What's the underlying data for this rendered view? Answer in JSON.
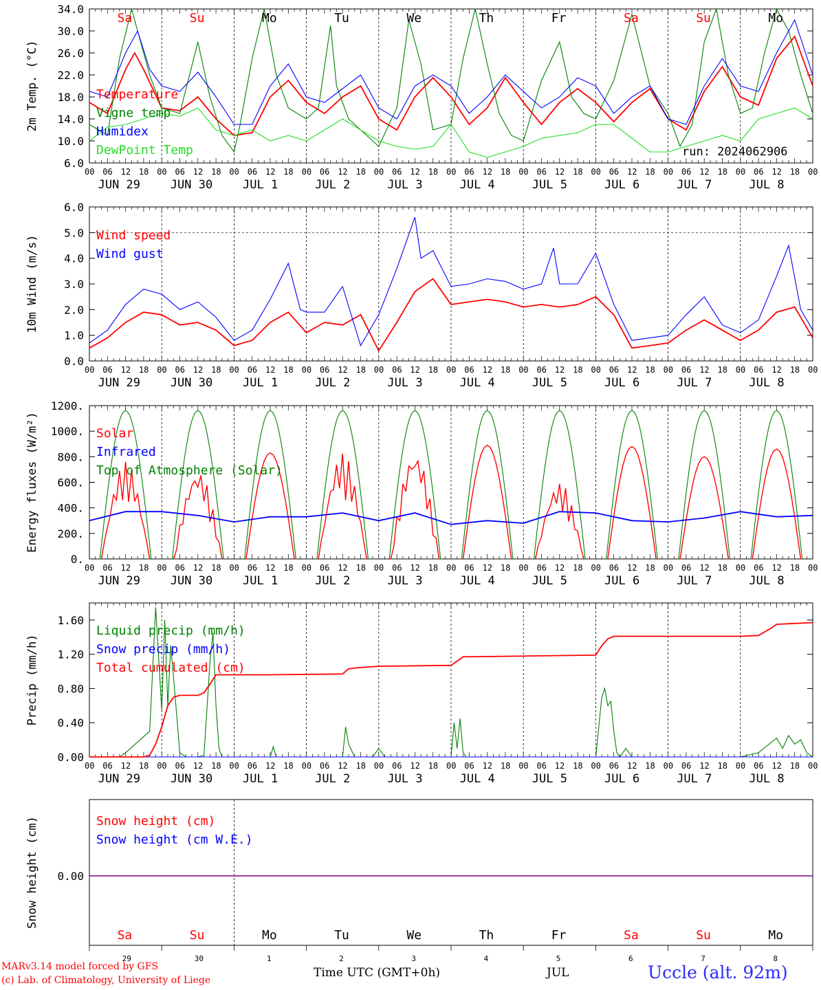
{
  "run_label": "run: 2024062906",
  "days": [
    "Sa",
    "Su",
    "Mo",
    "Tu",
    "We",
    "Th",
    "Fr",
    "Sa",
    "Su",
    "Mo"
  ],
  "date_labels": [
    "JUN 29",
    "JUN 30",
    "JUL  1",
    "JUL  2",
    "JUL  3",
    "JUL  4",
    "JUL  5",
    "JUL  6",
    "JUL  7",
    "JUL  8"
  ],
  "hour_labels": [
    "00",
    "06",
    "12",
    "18"
  ],
  "bottom_day_numbers": [
    "29",
    "30",
    "1",
    "2",
    "3",
    "4",
    "5",
    "6",
    "7",
    "8"
  ],
  "bottom_month_label": "JUL",
  "x_axis_title": "Time UTC (GMT+0h)",
  "footer_model": "MARv3.14 model forced by GFS",
  "footer_lab": "(c) Lab. of Climatology, University of Liege",
  "station_label": "Uccle (alt. 92m)",
  "colors": {
    "red": "#ff0000",
    "green": "#008000",
    "blue": "#0000ff",
    "lightgreen": "#22dd22",
    "purple": "#800080"
  },
  "chart_data": [
    {
      "type": "line",
      "ylabel": "2m Temp. (°C)",
      "ylim": [
        6,
        34
      ],
      "yticks": [
        "6.0",
        "10.0",
        "14.0",
        "18.0",
        "22.0",
        "26.0",
        "30.0",
        "34.0"
      ],
      "series": [
        {
          "name": "Temperature",
          "color": "red",
          "x": [
            0,
            6,
            12,
            15,
            18,
            24,
            30,
            36,
            42,
            48,
            54,
            60,
            66,
            72,
            78,
            84,
            90,
            96,
            102,
            108,
            114,
            120,
            126,
            132,
            138,
            144,
            150,
            156,
            162,
            168,
            174,
            180,
            186,
            192,
            198,
            204,
            210,
            216,
            222,
            228,
            234,
            240
          ],
          "y": [
            17,
            15,
            23,
            26,
            23,
            16,
            15.5,
            18,
            14,
            11,
            11.5,
            18,
            21,
            17,
            15,
            18,
            20,
            14,
            12,
            18,
            21.5,
            18,
            13,
            16,
            21.5,
            17,
            13,
            17,
            19.5,
            17,
            13.5,
            17,
            19.5,
            14,
            12,
            19,
            23.5,
            18,
            16.5,
            25,
            29,
            20
          ]
        },
        {
          "name": "Vigne temp",
          "color": "green",
          "x": [
            0,
            6,
            10,
            14,
            16,
            20,
            24,
            30,
            36,
            40,
            44,
            48,
            50,
            54,
            58,
            62,
            66,
            72,
            76,
            80,
            82,
            86,
            90,
            96,
            102,
            106,
            110,
            114,
            120,
            124,
            128,
            132,
            136,
            140,
            144,
            150,
            156,
            160,
            164,
            168,
            174,
            180,
            186,
            192,
            196,
            200,
            204,
            208,
            212,
            216,
            220,
            224,
            228,
            232,
            236,
            240
          ],
          "y": [
            13,
            11,
            25,
            34,
            30,
            22,
            16,
            15,
            28,
            18,
            11,
            8,
            13,
            25,
            34,
            22,
            16,
            14,
            16,
            31,
            20,
            14,
            12,
            9,
            16,
            32,
            24,
            12,
            13,
            25,
            34,
            24,
            15,
            11,
            10,
            21,
            28,
            18,
            15,
            14,
            21,
            33,
            20,
            15,
            9,
            13,
            28,
            34,
            22,
            15,
            16,
            26,
            34,
            30,
            22,
            15
          ]
        },
        {
          "name": "Humidex",
          "color": "blue",
          "x": [
            0,
            6,
            12,
            16,
            20,
            24,
            30,
            36,
            42,
            48,
            54,
            60,
            66,
            72,
            78,
            84,
            90,
            96,
            102,
            108,
            114,
            120,
            126,
            132,
            138,
            144,
            150,
            156,
            162,
            168,
            174,
            180,
            186,
            192,
            198,
            204,
            210,
            216,
            222,
            228,
            234,
            240
          ],
          "y": [
            19,
            18,
            26,
            30,
            23,
            20,
            19,
            22.5,
            18,
            13,
            13,
            20,
            24,
            18,
            17,
            19.5,
            22,
            16,
            14,
            20,
            22,
            20,
            15,
            18,
            22,
            19,
            16,
            18,
            21.5,
            20,
            15,
            18,
            20,
            14,
            13,
            20,
            25,
            20,
            19,
            26,
            32,
            22
          ]
        },
        {
          "name": "DewPoint Temp",
          "color": "lightgreen",
          "x": [
            0,
            6,
            12,
            18,
            24,
            30,
            36,
            42,
            48,
            54,
            60,
            66,
            72,
            78,
            84,
            90,
            96,
            102,
            108,
            114,
            120,
            126,
            132,
            138,
            144,
            150,
            156,
            162,
            168,
            174,
            180,
            186,
            192,
            198,
            204,
            210,
            216,
            222,
            228,
            234,
            240
          ],
          "y": [
            10,
            12.5,
            13,
            14,
            15,
            14.5,
            16,
            12,
            11,
            12,
            10,
            11,
            10,
            12,
            14,
            12,
            10,
            9,
            8.5,
            9,
            13,
            8,
            7,
            8,
            9,
            10.5,
            11,
            11.5,
            13,
            13,
            10.5,
            8,
            8,
            9,
            10,
            11,
            10,
            14,
            15,
            16,
            14
          ]
        }
      ]
    },
    {
      "type": "line",
      "ylabel": "10m Wind (m/s)",
      "ylim": [
        0,
        6
      ],
      "yticks": [
        "0.0",
        "1.0",
        "2.0",
        "3.0",
        "4.0",
        "5.0",
        "6.0"
      ],
      "series": [
        {
          "name": "Wind speed",
          "color": "red",
          "x": [
            0,
            6,
            12,
            18,
            24,
            30,
            36,
            42,
            48,
            54,
            60,
            66,
            72,
            78,
            84,
            90,
            96,
            102,
            108,
            114,
            120,
            126,
            132,
            138,
            144,
            150,
            156,
            162,
            168,
            174,
            180,
            186,
            192,
            198,
            204,
            210,
            216,
            222,
            228,
            234,
            240
          ],
          "y": [
            0.5,
            0.9,
            1.5,
            1.9,
            1.8,
            1.4,
            1.5,
            1.2,
            0.6,
            0.8,
            1.5,
            1.9,
            1.1,
            1.5,
            1.4,
            1.8,
            0.4,
            1.5,
            2.7,
            3.2,
            2.2,
            2.3,
            2.4,
            2.3,
            2.1,
            2.2,
            2.1,
            2.2,
            2.5,
            1.8,
            0.5,
            0.6,
            0.7,
            1.2,
            1.6,
            1.2,
            0.8,
            1.2,
            1.9,
            2.1,
            0.9
          ]
        },
        {
          "name": "Wind gust",
          "color": "blue",
          "x": [
            0,
            6,
            12,
            18,
            24,
            30,
            36,
            42,
            48,
            54,
            60,
            66,
            70,
            72,
            78,
            84,
            90,
            96,
            102,
            108,
            110,
            114,
            120,
            126,
            132,
            138,
            144,
            150,
            154,
            156,
            162,
            168,
            174,
            180,
            186,
            192,
            198,
            204,
            210,
            216,
            222,
            228,
            232,
            236,
            240
          ],
          "y": [
            0.7,
            1.2,
            2.2,
            2.8,
            2.6,
            2,
            2.3,
            1.7,
            0.8,
            1.2,
            2.4,
            3.8,
            2,
            1.9,
            1.9,
            2.9,
            0.6,
            1.8,
            3.6,
            5.6,
            4,
            4.3,
            2.9,
            3,
            3.2,
            3.1,
            2.8,
            3,
            4.4,
            3,
            3,
            4.2,
            2.2,
            0.8,
            0.9,
            1,
            1.8,
            2.5,
            1.4,
            1.1,
            1.6,
            3.3,
            4.5,
            2,
            1.2
          ]
        }
      ]
    },
    {
      "type": "line",
      "ylabel": "Energy fluxes (W/m²)",
      "ylim": [
        0,
        1200
      ],
      "yticks": [
        "0.",
        "200.",
        "400.",
        "600.",
        "800.",
        "1000.",
        "1200."
      ],
      "series": [
        {
          "name": "Solar",
          "color": "red",
          "peaks": [
            760,
            700,
            830,
            830,
            850,
            890,
            600,
            880,
            800,
            860
          ]
        },
        {
          "name": "Infrared",
          "color": "blue",
          "x": [
            0,
            12,
            24,
            36,
            48,
            60,
            72,
            84,
            96,
            108,
            120,
            132,
            144,
            156,
            168,
            180,
            192,
            204,
            216,
            228,
            240
          ],
          "y": [
            300,
            370,
            370,
            340,
            290,
            330,
            330,
            360,
            300,
            360,
            270,
            300,
            280,
            370,
            360,
            300,
            290,
            320,
            370,
            330,
            340
          ]
        },
        {
          "name": "Top of Atmosphere (Solar)",
          "color": "green",
          "peak": 1160,
          "sunrise_h": 3.5,
          "sunset_h": 20.5
        }
      ]
    },
    {
      "type": "line",
      "ylabel": "Precip (mm/h)",
      "ylim": [
        0,
        1.8
      ],
      "yticks": [
        "0.00",
        "0.40",
        "0.80",
        "1.20",
        "1.60"
      ],
      "series": [
        {
          "name": "Liquid precip (mm/h)",
          "color": "green",
          "x": [
            0,
            10,
            12,
            20,
            22,
            24,
            25,
            26,
            27,
            28,
            30,
            32,
            36,
            38,
            40,
            41,
            42,
            43,
            44,
            48,
            60,
            61,
            62,
            84,
            85,
            86,
            88,
            94,
            96,
            98,
            120,
            121,
            122,
            123,
            124,
            125,
            126,
            168,
            170,
            171,
            172,
            173,
            174,
            175,
            176,
            178,
            180,
            216,
            222,
            228,
            230,
            232,
            234,
            236,
            238,
            240
          ],
          "y": [
            0,
            0,
            0.05,
            0.3,
            1.75,
            0.55,
            1.6,
            0.6,
            1.3,
            0.9,
            0.05,
            0,
            0,
            0.02,
            1.1,
            1.45,
            0.6,
            0.1,
            0,
            0,
            0,
            0.12,
            0,
            0,
            0.35,
            0.15,
            0,
            0,
            0.1,
            0,
            0,
            0.4,
            0.1,
            0.45,
            0.05,
            0,
            0,
            0,
            0.7,
            0.8,
            0.6,
            0.65,
            0.3,
            0.05,
            0,
            0.1,
            0,
            0,
            0.05,
            0.22,
            0.1,
            0.25,
            0.15,
            0.2,
            0.05,
            0
          ]
        },
        {
          "name": "Snow precip (mm/h)",
          "color": "blue",
          "constant": 0
        },
        {
          "name": "Total cumulated (cm)",
          "color": "red",
          "x": [
            0,
            18,
            20,
            22,
            24,
            26,
            28,
            30,
            36,
            38,
            40,
            42,
            48,
            60,
            84,
            86,
            88,
            96,
            120,
            122,
            124,
            168,
            170,
            172,
            174,
            216,
            222,
            226,
            228,
            240
          ],
          "y": [
            0,
            0,
            0.02,
            0.15,
            0.35,
            0.6,
            0.7,
            0.72,
            0.72,
            0.75,
            0.85,
            0.96,
            0.96,
            0.96,
            0.97,
            1.03,
            1.04,
            1.06,
            1.07,
            1.12,
            1.17,
            1.19,
            1.3,
            1.38,
            1.41,
            1.41,
            1.42,
            1.5,
            1.55,
            1.57
          ]
        }
      ]
    },
    {
      "type": "line",
      "ylabel": "Snow height (cm)",
      "yticks": [
        "0.00"
      ],
      "series": [
        {
          "name": "Snow height (cm)",
          "color": "red",
          "constant": 0
        },
        {
          "name": "Snow height (cm W.E.)",
          "color": "blue",
          "constant": 0
        }
      ]
    }
  ]
}
